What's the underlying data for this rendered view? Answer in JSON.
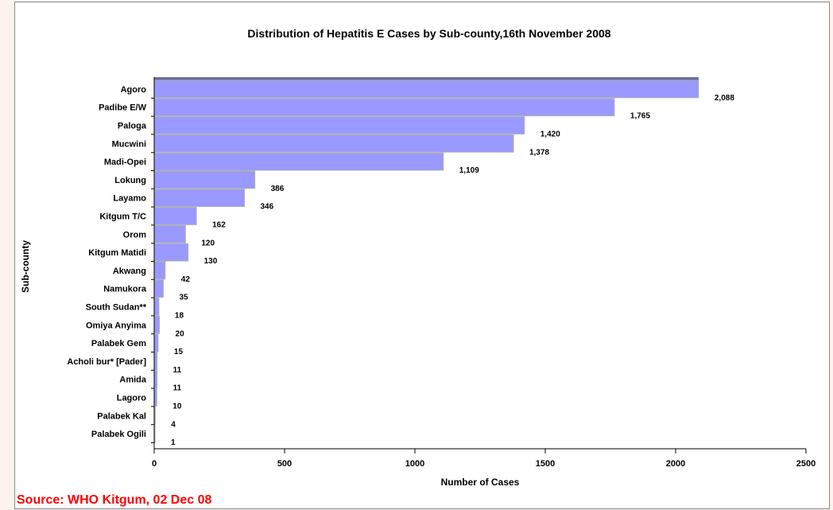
{
  "chart_data": {
    "type": "bar",
    "orientation": "horizontal",
    "title": "Distribution of Hepatitis E Cases by Sub-county,16th  November  2008",
    "xlabel": "Number of Cases",
    "ylabel": "Sub-county",
    "xlim": [
      0,
      2500
    ],
    "xticks": [
      "0",
      "500",
      "1000",
      "1500",
      "2000",
      "2500"
    ],
    "categories": [
      "Agoro",
      "Padibe E/W",
      "Paloga",
      "Mucwini",
      "Madi-Opei",
      "Lokung",
      "Layamo",
      "Kitgum T/C",
      "Orom",
      "Kitgum Matidi",
      "Akwang",
      "Namukora",
      "South Sudan**",
      "Omiya Anyima",
      "Palabek Gem",
      "Acholi bur* [Pader]",
      "Amida",
      "Lagoro",
      "Palabek Kal",
      "Palabek Ogili"
    ],
    "values": [
      2088,
      1765,
      1420,
      1378,
      1109,
      386,
      346,
      162,
      120,
      130,
      42,
      35,
      18,
      20,
      15,
      11,
      11,
      10,
      4,
      1
    ],
    "data_labels": [
      "2,088",
      "1,765",
      "1,420",
      "1,378",
      "1,109",
      "386",
      "346",
      "162",
      "120",
      "130",
      "42",
      "35",
      "18",
      "20",
      "15",
      "11",
      "11",
      "10",
      "4",
      "1"
    ],
    "bar_color": "#9999ff",
    "grid": false,
    "legend": "none"
  },
  "source_text": "Source:  WHO Kitgum, 02 Dec 08",
  "colors": {
    "source": "#ff0000",
    "bar": "#9999ff",
    "bar_edge": "#b0b0b0"
  }
}
